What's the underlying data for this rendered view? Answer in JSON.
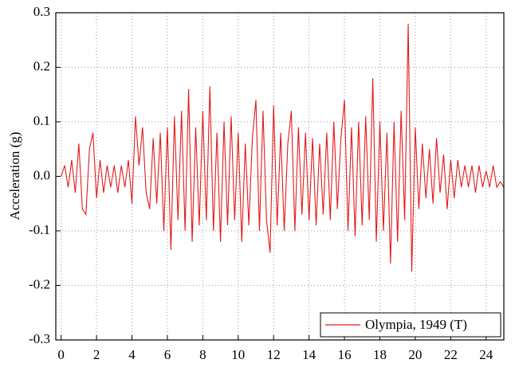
{
  "chart_data": {
    "type": "line",
    "ylabel": "Acceleration (g)",
    "x": [
      0,
      0.2,
      0.4,
      0.6,
      0.8,
      1,
      1.2,
      1.4,
      1.6,
      1.8,
      2,
      2.2,
      2.4,
      2.6,
      2.8,
      3,
      3.2,
      3.4,
      3.6,
      3.8,
      4,
      4.2,
      4.4,
      4.6,
      4.8,
      5,
      5.2,
      5.4,
      5.6,
      5.8,
      6,
      6.2,
      6.4,
      6.6,
      6.8,
      7,
      7.2,
      7.4,
      7.6,
      7.8,
      8,
      8.2,
      8.4,
      8.6,
      8.8,
      9,
      9.2,
      9.4,
      9.6,
      9.8,
      10,
      10.2,
      10.4,
      10.6,
      10.8,
      11,
      11.2,
      11.4,
      11.6,
      11.8,
      12,
      12.2,
      12.4,
      12.6,
      12.8,
      13,
      13.2,
      13.4,
      13.6,
      13.8,
      14,
      14.2,
      14.4,
      14.6,
      14.8,
      15,
      15.2,
      15.4,
      15.6,
      15.8,
      16,
      16.2,
      16.4,
      16.6,
      16.8,
      17,
      17.2,
      17.4,
      17.6,
      17.8,
      18,
      18.2,
      18.4,
      18.6,
      18.8,
      19,
      19.2,
      19.4,
      19.6,
      19.8,
      20,
      20.2,
      20.4,
      20.6,
      20.8,
      21,
      21.2,
      21.4,
      21.6,
      21.8,
      22,
      22.2,
      22.4,
      22.6,
      22.8,
      23,
      23.2,
      23.4,
      23.6,
      23.8,
      24,
      24.2,
      24.4,
      24.6,
      24.8,
      25
    ],
    "series": [
      {
        "name": "Olympia, 1949 (T)",
        "color": "#e41a1c",
        "values": [
          0.0,
          0.02,
          -0.02,
          0.03,
          -0.03,
          0.06,
          -0.06,
          -0.07,
          0.05,
          0.08,
          -0.04,
          0.03,
          -0.03,
          0.02,
          -0.02,
          0.02,
          -0.03,
          0.02,
          -0.02,
          0.03,
          -0.05,
          0.11,
          0.02,
          0.09,
          -0.03,
          -0.06,
          0.07,
          -0.05,
          0.08,
          -0.1,
          0.09,
          -0.135,
          0.11,
          -0.08,
          0.12,
          -0.1,
          0.16,
          -0.12,
          0.09,
          -0.09,
          0.12,
          -0.08,
          0.165,
          -0.1,
          0.08,
          -0.12,
          0.1,
          -0.09,
          0.11,
          -0.08,
          0.08,
          -0.12,
          0.06,
          -0.09,
          0.07,
          0.14,
          -0.1,
          0.12,
          -0.08,
          -0.14,
          0.13,
          -0.09,
          0.08,
          -0.1,
          0.06,
          0.12,
          -0.1,
          0.09,
          -0.07,
          0.08,
          -0.08,
          0.07,
          -0.09,
          0.06,
          -0.07,
          0.08,
          -0.08,
          0.1,
          -0.06,
          0.07,
          0.14,
          -0.1,
          0.09,
          -0.11,
          0.1,
          -0.09,
          0.11,
          -0.08,
          0.18,
          -0.12,
          0.1,
          -0.1,
          0.08,
          -0.16,
          0.1,
          -0.12,
          0.12,
          -0.08,
          0.28,
          -0.175,
          0.09,
          -0.06,
          0.06,
          -0.04,
          0.05,
          -0.05,
          0.07,
          -0.03,
          0.04,
          -0.06,
          0.03,
          -0.04,
          0.03,
          -0.02,
          0.02,
          -0.02,
          0.02,
          -0.03,
          0.02,
          -0.02,
          0.01,
          -0.02,
          0.02,
          -0.02,
          -0.01,
          -0.02
        ]
      }
    ],
    "xlim": [
      -0.3,
      25
    ],
    "xticks": [
      0,
      2,
      4,
      6,
      8,
      10,
      12,
      14,
      16,
      18,
      20,
      22,
      24
    ],
    "ylim": [
      -0.3,
      0.3
    ],
    "yticks": [
      -0.3,
      -0.2,
      -0.1,
      {
        "value": 0,
        "label": "0.0"
      },
      0.1,
      0.2,
      0.3
    ],
    "grid": true,
    "legend": "lower right"
  }
}
